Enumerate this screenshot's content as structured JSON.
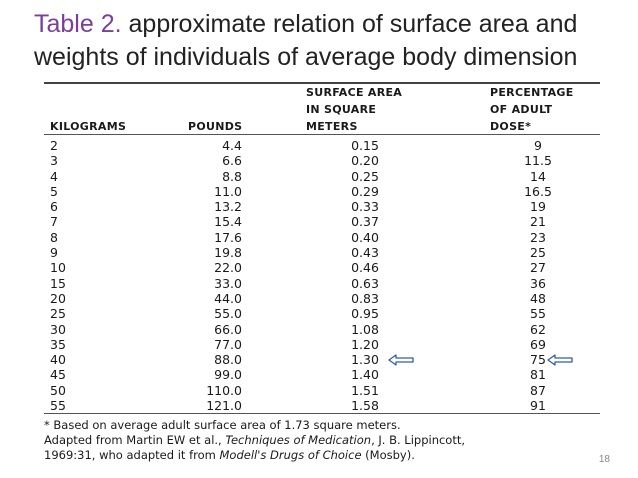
{
  "title": {
    "number": "Table 2.",
    "text": " approximate relation of surface area and weights of individuals of average body dimension"
  },
  "table": {
    "headers": {
      "kilograms": "KILOGRAMS",
      "pounds": "POUNDS",
      "surface_area": [
        "SURFACE AREA",
        "IN SQUARE",
        "METERS"
      ],
      "percentage": [
        "PERCENTAGE",
        "OF ADULT",
        "DOSE*"
      ]
    },
    "rows": [
      {
        "kg": "2",
        "lb": "4.4",
        "sa": "0.15",
        "pct": "9"
      },
      {
        "kg": "3",
        "lb": "6.6",
        "sa": "0.20",
        "pct": "11.5"
      },
      {
        "kg": "4",
        "lb": "8.8",
        "sa": "0.25",
        "pct": "14"
      },
      {
        "kg": "5",
        "lb": "11.0",
        "sa": "0.29",
        "pct": "16.5"
      },
      {
        "kg": "6",
        "lb": "13.2",
        "sa": "0.33",
        "pct": "19"
      },
      {
        "kg": "7",
        "lb": "15.4",
        "sa": "0.37",
        "pct": "21"
      },
      {
        "kg": "8",
        "lb": "17.6",
        "sa": "0.40",
        "pct": "23"
      },
      {
        "kg": "9",
        "lb": "19.8",
        "sa": "0.43",
        "pct": "25"
      },
      {
        "kg": "10",
        "lb": "22.0",
        "sa": "0.46",
        "pct": "27"
      },
      {
        "kg": "15",
        "lb": "33.0",
        "sa": "0.63",
        "pct": "36"
      },
      {
        "kg": "20",
        "lb": "44.0",
        "sa": "0.83",
        "pct": "48"
      },
      {
        "kg": "25",
        "lb": "55.0",
        "sa": "0.95",
        "pct": "55"
      },
      {
        "kg": "30",
        "lb": "66.0",
        "sa": "1.08",
        "pct": "62"
      },
      {
        "kg": "35",
        "lb": "77.0",
        "sa": "1.20",
        "pct": "69"
      },
      {
        "kg": "40",
        "lb": "88.0",
        "sa": "1.30",
        "pct": "75",
        "highlight": true
      },
      {
        "kg": "45",
        "lb": "99.0",
        "sa": "1.40",
        "pct": "81"
      },
      {
        "kg": "50",
        "lb": "110.0",
        "sa": "1.51",
        "pct": "87"
      },
      {
        "kg": "55",
        "lb": "121.0",
        "sa": "1.58",
        "pct": "91"
      }
    ]
  },
  "footnote": {
    "line1": "* Based on average adult surface area of 1.73 square meters.",
    "line2_pre": "Adapted from Martin EW et al., ",
    "line2_italic": "Techniques of Medication",
    "line2_post": ", J. B. Lippincott,",
    "line3_pre": "1969:31, who adapted it from ",
    "line3_italic": "Modell's Drugs of Choice",
    "line3_post": " (Mosby)."
  },
  "page_number": "18",
  "colors": {
    "title_number": "#7a3f9b",
    "arrow": "#2e5fa8"
  },
  "icons": {
    "row_marker": "arrow-left-icon"
  }
}
